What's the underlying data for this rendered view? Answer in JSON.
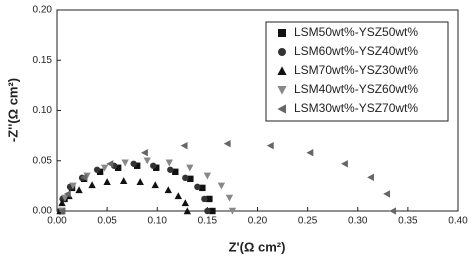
{
  "chart_data": {
    "type": "scatter",
    "x_label": "Z'(Ω cm²)",
    "y_label": "-Z''(Ω cm²)",
    "xlim": [
      0,
      0.4
    ],
    "ylim": [
      0,
      0.2
    ],
    "xticks": [
      {
        "value": 0,
        "label": "0.00"
      },
      {
        "value": 0.05,
        "label": "0.05"
      },
      {
        "value": 0.1,
        "label": "0.10"
      },
      {
        "value": 0.15,
        "label": "0.15"
      },
      {
        "value": 0.2,
        "label": "0.20"
      },
      {
        "value": 0.25,
        "label": "0.25"
      },
      {
        "value": 0.3,
        "label": "0.30"
      },
      {
        "value": 0.35,
        "label": "0.35"
      },
      {
        "value": 0.4,
        "label": "0.40"
      }
    ],
    "yticks": [
      {
        "value": 0,
        "label": "0.00"
      },
      {
        "value": 0.05,
        "label": "0.05"
      },
      {
        "value": 0.1,
        "label": "0.10"
      },
      {
        "value": 0.15,
        "label": "0.15"
      },
      {
        "value": 0.2,
        "label": "0.20"
      }
    ],
    "legend": "upper right",
    "series": [
      {
        "name": "LSM50wt%-YSZ50wt%",
        "color": "#111111",
        "marker": "square",
        "x": [
          0.005,
          0.0075,
          0.015,
          0.027,
          0.043,
          0.061,
          0.08,
          0.099,
          0.118,
          0.133,
          0.145,
          0.152,
          0.155
        ],
        "values": [
          0,
          0.012,
          0.023,
          0.032,
          0.039,
          0.043,
          0.045,
          0.043,
          0.039,
          0.032,
          0.023,
          0.012,
          0
        ]
      },
      {
        "name": "LSM60wt%-YSZ40wt%",
        "color": "#333333",
        "marker": "circle",
        "x": [
          0.003,
          0.0055,
          0.013,
          0.025,
          0.04,
          0.057,
          0.0765,
          0.096,
          0.113,
          0.128,
          0.14,
          0.147,
          0.15
        ],
        "values": [
          0,
          0.012,
          0.024,
          0.033,
          0.041,
          0.045,
          0.047,
          0.045,
          0.041,
          0.033,
          0.024,
          0.012,
          0
        ]
      },
      {
        "name": "LSM70wt%-YSZ30wt%",
        "color": "#111111",
        "marker": "triangle-up",
        "x": [
          0.003,
          0.005,
          0.012,
          0.022,
          0.035,
          0.05,
          0.0665,
          0.083,
          0.098,
          0.111,
          0.121,
          0.128,
          0.13
        ],
        "values": [
          0,
          0.008,
          0.015,
          0.021,
          0.026,
          0.029,
          0.03,
          0.029,
          0.026,
          0.021,
          0.015,
          0.008,
          0
        ]
      },
      {
        "name": "LSM40wt%-YSZ60wt%",
        "color": "#888888",
        "marker": "triangle-down",
        "x": [
          0.005,
          0.008,
          0.016,
          0.03,
          0.0475,
          0.068,
          0.09,
          0.112,
          0.1325,
          0.15,
          0.164,
          0.172,
          0.175
        ],
        "values": [
          0,
          0.013,
          0.025,
          0.035,
          0.043,
          0.048,
          0.05,
          0.048,
          0.043,
          0.035,
          0.025,
          0.013,
          0
        ]
      },
      {
        "name": "LSM30wt%-YSZ70wt%",
        "color": "#666666",
        "marker": "triangle-left",
        "x": [
          0.005,
          0.0106,
          0.027,
          0.053,
          0.0875,
          0.127,
          0.17,
          0.213,
          0.2525,
          0.287,
          0.313,
          0.329,
          0.335
        ],
        "values": [
          0,
          0.017,
          0.0335,
          0.047,
          0.058,
          0.065,
          0.067,
          0.065,
          0.058,
          0.047,
          0.0335,
          0.017,
          0
        ]
      }
    ]
  }
}
